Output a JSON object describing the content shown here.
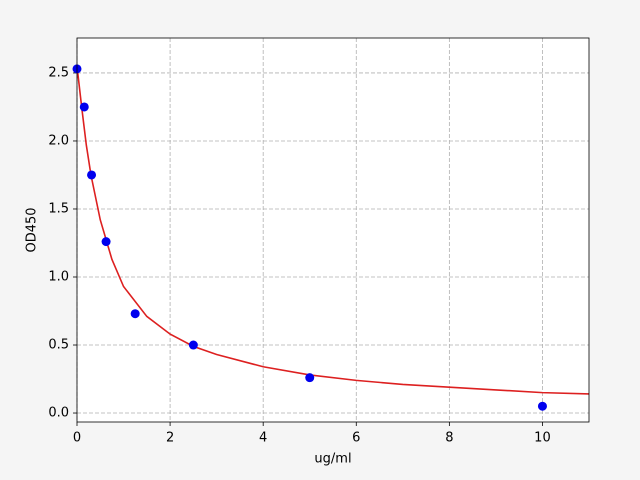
{
  "chart_data": {
    "type": "scatter",
    "xlabel": "ug/ml",
    "ylabel": "OD450",
    "xlim": [
      0,
      11
    ],
    "ylim": [
      -0.066,
      2.757
    ],
    "xticks": [
      0,
      2,
      4,
      6,
      8,
      10
    ],
    "yticks": [
      {
        "value": 0,
        "label": "0.0"
      },
      0.5,
      {
        "value": 1,
        "label": "1.0"
      },
      1.5,
      {
        "value": 2,
        "label": "2.0"
      },
      2.5
    ],
    "grid": true,
    "series": [
      {
        "type": "line",
        "color": "#dd2020",
        "x": [
          0,
          0.1,
          0.2,
          0.3,
          0.5,
          0.75,
          1,
          1.5,
          2,
          2.5,
          3,
          4,
          5,
          6,
          7,
          8,
          9,
          10,
          11
        ],
        "values": [
          2.55,
          2.25,
          1.97,
          1.75,
          1.42,
          1.13,
          0.93,
          0.71,
          0.58,
          0.49,
          0.43,
          0.34,
          0.28,
          0.24,
          0.21,
          0.19,
          0.17,
          0.15,
          0.14
        ]
      },
      {
        "type": "scatter",
        "color": "#0000ee",
        "x": [
          0,
          0.156,
          0.3125,
          0.625,
          1.25,
          2.5,
          5,
          10
        ],
        "values": [
          2.53,
          2.25,
          1.75,
          1.26,
          0.73,
          0.5,
          0.26,
          0.05
        ]
      }
    ]
  }
}
